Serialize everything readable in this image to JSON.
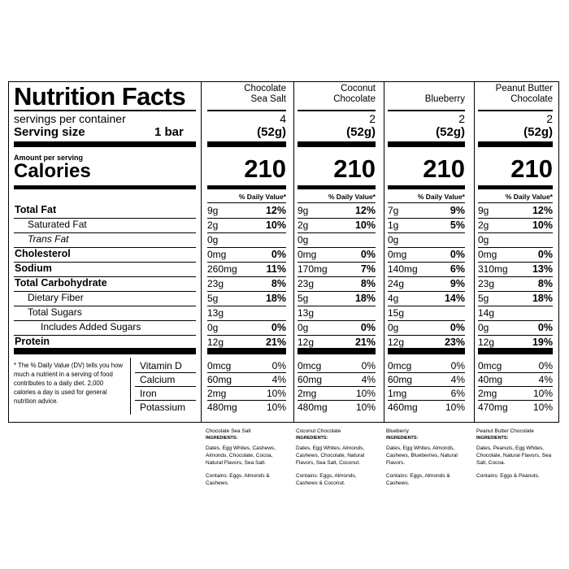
{
  "label": {
    "title": "Nutrition Facts",
    "servings_label": "servings per container",
    "serving_size_label": "Serving size",
    "serving_size_value": "1 bar",
    "amount_per_serving": "Amount per serving",
    "calories_label": "Calories",
    "daily_value_header": "% Daily Value*",
    "footnote": "* The % Daily Value (DV) tells you how much a nutrient in a serving of food contributes to a daily diet. 2,000 calories a day is used for general nutrition advice."
  },
  "nutrient_labels": [
    "Total Fat",
    "Saturated Fat",
    "Trans Fat",
    "Cholesterol",
    "Sodium",
    "Total Carbohydrate",
    "Dietary Fiber",
    "Total Sugars",
    "Includes Added Sugars",
    "Protein"
  ],
  "vitamin_labels": [
    "Vitamin D",
    "Calcium",
    "Iron",
    "Potassium"
  ],
  "products": [
    {
      "name_line1": "Chocolate",
      "name_line2": "Sea Salt",
      "servings": "4",
      "serving_g": "(52g)",
      "calories": "210",
      "nutrients": [
        [
          "9g",
          "12%"
        ],
        [
          "2g",
          "10%"
        ],
        [
          "0g",
          ""
        ],
        [
          "0mg",
          "0%"
        ],
        [
          "260mg",
          "11%"
        ],
        [
          "23g",
          "8%"
        ],
        [
          "5g",
          "18%"
        ],
        [
          "13g",
          ""
        ],
        [
          "0g",
          "0%"
        ],
        [
          "12g",
          "21%"
        ]
      ],
      "vitamins": [
        [
          "0mcg",
          "0%"
        ],
        [
          "60mg",
          "4%"
        ],
        [
          "2mg",
          "10%"
        ],
        [
          "480mg",
          "10%"
        ]
      ],
      "ingredients_title": "Chocolate Sea Salt",
      "ingredients_label": "INGREDIENTS:",
      "ingredients": "Dates, Egg Whites, Cashews, Almonds, Chocolate, Cocoa, Natural Flavors, Sea Salt.",
      "contains": "Contains: Eggs, Almonds & Cashews."
    },
    {
      "name_line1": "Coconut",
      "name_line2": "Chocolate",
      "servings": "2",
      "serving_g": "(52g)",
      "calories": "210",
      "nutrients": [
        [
          "9g",
          "12%"
        ],
        [
          "2g",
          "10%"
        ],
        [
          "0g",
          ""
        ],
        [
          "0mg",
          "0%"
        ],
        [
          "170mg",
          "7%"
        ],
        [
          "23g",
          "8%"
        ],
        [
          "5g",
          "18%"
        ],
        [
          "13g",
          ""
        ],
        [
          "0g",
          "0%"
        ],
        [
          "12g",
          "21%"
        ]
      ],
      "vitamins": [
        [
          "0mcg",
          "0%"
        ],
        [
          "60mg",
          "4%"
        ],
        [
          "2mg",
          "10%"
        ],
        [
          "480mg",
          "10%"
        ]
      ],
      "ingredients_title": "Coconut Chocolate",
      "ingredients_label": "INGREDIENTS:",
      "ingredients": "Dates, Egg Whites, Almonds, Cashews, Chocolate, Natural Flavors, Sea Salt, Coconut.",
      "contains": "Contains: Eggs, Almonds, Cashews & Coconut."
    },
    {
      "name_line1": "",
      "name_line2": "Blueberry",
      "servings": "2",
      "serving_g": "(52g)",
      "calories": "210",
      "nutrients": [
        [
          "7g",
          "9%"
        ],
        [
          "1g",
          "5%"
        ],
        [
          "0g",
          ""
        ],
        [
          "0mg",
          "0%"
        ],
        [
          "140mg",
          "6%"
        ],
        [
          "24g",
          "9%"
        ],
        [
          "4g",
          "14%"
        ],
        [
          "15g",
          ""
        ],
        [
          "0g",
          "0%"
        ],
        [
          "12g",
          "23%"
        ]
      ],
      "vitamins": [
        [
          "0mcg",
          "0%"
        ],
        [
          "60mg",
          "4%"
        ],
        [
          "1mg",
          "6%"
        ],
        [
          "460mg",
          "10%"
        ]
      ],
      "ingredients_title": "Blueberry",
      "ingredients_label": "INGREDIENTS:",
      "ingredients": "Dates, Egg Whites, Almonds, Cashews, Blueberries, Natural Flavors.",
      "contains": "Contains: Eggs, Almonds & Cashews."
    },
    {
      "name_line1": "Peanut Butter",
      "name_line2": "Chocolate",
      "servings": "2",
      "serving_g": "(52g)",
      "calories": "210",
      "nutrients": [
        [
          "9g",
          "12%"
        ],
        [
          "2g",
          "10%"
        ],
        [
          "0g",
          ""
        ],
        [
          "0mg",
          "0%"
        ],
        [
          "310mg",
          "13%"
        ],
        [
          "23g",
          "8%"
        ],
        [
          "5g",
          "18%"
        ],
        [
          "14g",
          ""
        ],
        [
          "0g",
          "0%"
        ],
        [
          "12g",
          "19%"
        ]
      ],
      "vitamins": [
        [
          "0mcg",
          "0%"
        ],
        [
          "40mg",
          "4%"
        ],
        [
          "2mg",
          "10%"
        ],
        [
          "470mg",
          "10%"
        ]
      ],
      "ingredients_title": "Peanut Butter Chocolate",
      "ingredients_label": "INGREDIENTS:",
      "ingredients": "Dates, Peanuts, Egg Whites, Chocolate, Natural Flavors, Sea Salt, Cocoa.",
      "contains": "Contains: Eggs & Peanuts."
    }
  ]
}
